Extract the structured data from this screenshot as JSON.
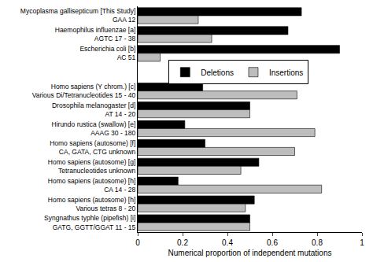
{
  "chart_data": {
    "type": "bar",
    "orientation": "horizontal",
    "x_label": "Numerical proportion of independent mutations",
    "categories": [
      "Mycoplasma gallisepticum [This Study]\nGAA 12",
      "Haemophilus influenzae [a]\nAGTC 17 - 38",
      "Escherichia coli [b]\nAC 51",
      null,
      "Homo sapiens (Y chrom.) [c]\nVarious Di/Tetranucleotides 15 - 40",
      "Drosophila melanogaster [d]\nAT 14 - 20",
      "Hirundo rustica (swallow) [e]\nAAAG 30 - 180",
      "Homo sapiens (autosome) [f]\nCA, GATA, CTG unknown",
      "Homo sapiens (autosome) [g]\nTetranucleotides unknown",
      "Homo sapiens (autosome) [h]\nCA 14 - 28",
      "Homo sapiens (autosome) [h]\nVarious tetras 8 - 20",
      "Syngnathus typhle (pipefish) [i]\nGATG, GGTT/GGAT 11 - 15"
    ],
    "series": [
      {
        "name": "Deletions",
        "color": "#000000",
        "values": [
          0.73,
          0.67,
          0.9,
          null,
          0.29,
          0.5,
          0.21,
          0.3,
          0.54,
          0.18,
          0.52,
          0.5
        ]
      },
      {
        "name": "Insertions",
        "color": "#bdbdbd",
        "values": [
          0.27,
          0.33,
          0.1,
          null,
          0.71,
          0.5,
          0.79,
          0.7,
          0.46,
          0.82,
          0.48,
          0.5
        ]
      }
    ],
    "xlim": [
      0,
      1
    ],
    "xticks": [
      0,
      0.2,
      0.4,
      0.6,
      0.8,
      1
    ],
    "grid": false,
    "legend": "upper center"
  }
}
